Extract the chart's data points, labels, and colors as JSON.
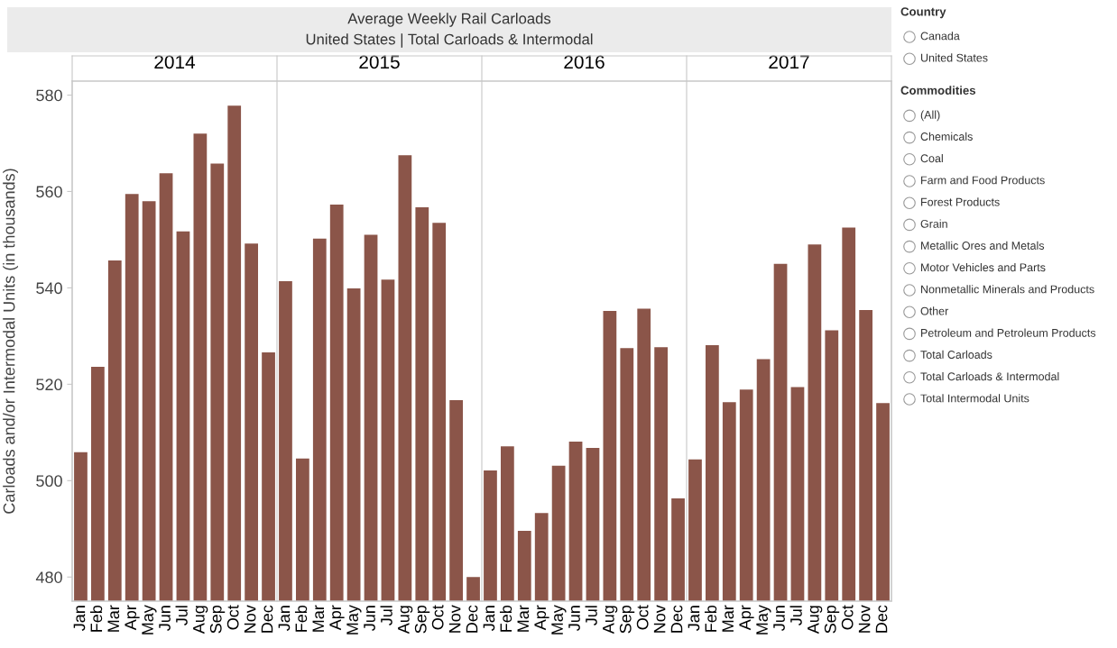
{
  "chart_data": [
    {
      "type": "bar",
      "title": "Average Weekly Rail Carloads",
      "subtitle": "United States | Total Carloads & Intermodal",
      "ylabel": "Carloads and/or Intermodal Units (in thousands)",
      "categories": [
        "Jan",
        "Feb",
        "Mar",
        "Apr",
        "May",
        "Jun",
        "Jul",
        "Aug",
        "Sep",
        "Oct",
        "Nov",
        "Dec",
        "Jan",
        "Feb",
        "Mar",
        "Apr",
        "May",
        "Jun",
        "Jul",
        "Aug",
        "Sep",
        "Oct",
        "Nov",
        "Dec",
        "Jan",
        "Feb",
        "Mar",
        "Apr",
        "May",
        "Jun",
        "Jul",
        "Aug",
        "Sep",
        "Oct",
        "Nov",
        "Dec",
        "Jan",
        "Feb",
        "Mar",
        "Apr",
        "May",
        "Jun",
        "Jul",
        "Aug",
        "Sep",
        "Oct",
        "Nov",
        "Dec"
      ],
      "color": "#8b5549",
      "values": [
        505.9,
        523.6,
        545.7,
        559.5,
        558.0,
        563.8,
        551.7,
        572.0,
        565.8,
        577.8,
        549.2,
        526.6,
        541.4,
        504.6,
        550.2,
        557.3,
        539.9,
        551.0,
        541.7,
        567.5,
        556.7,
        553.5,
        516.7,
        480.0,
        502.1,
        507.1,
        489.6,
        493.3,
        503.1,
        508.1,
        506.8,
        535.2,
        527.5,
        535.7,
        527.7,
        496.3,
        504.4,
        528.1,
        516.3,
        518.9,
        525.2,
        545.0,
        519.4,
        549.0,
        531.2,
        552.5,
        535.4,
        516.1
      ],
      "ylim": [
        475,
        582.9
      ],
      "yticks": [
        480,
        500,
        520,
        540,
        560,
        580
      ],
      "x2lim": [
        2013.5,
        2017.5
      ],
      "x2ticks": [
        2014,
        2015,
        2016,
        2017
      ]
    },
    {
      "type": "other",
      "title": "Country",
      "annotations": [
        "Canada",
        "United States"
      ]
    },
    {
      "type": "other",
      "title": "Commodities",
      "annotations": [
        "(All)",
        "Chemicals",
        "Coal",
        "Farm and Food Products",
        "Forest Products",
        "Grain",
        "Metallic Ores and Metals",
        "Motor Vehicles and Parts",
        "Nonmetallic Minerals and Products",
        "Other",
        "Petroleum and Petroleum Products",
        "Total Carloads",
        "Total Carloads & Intermodal",
        "Total Intermodal Units"
      ]
    }
  ]
}
